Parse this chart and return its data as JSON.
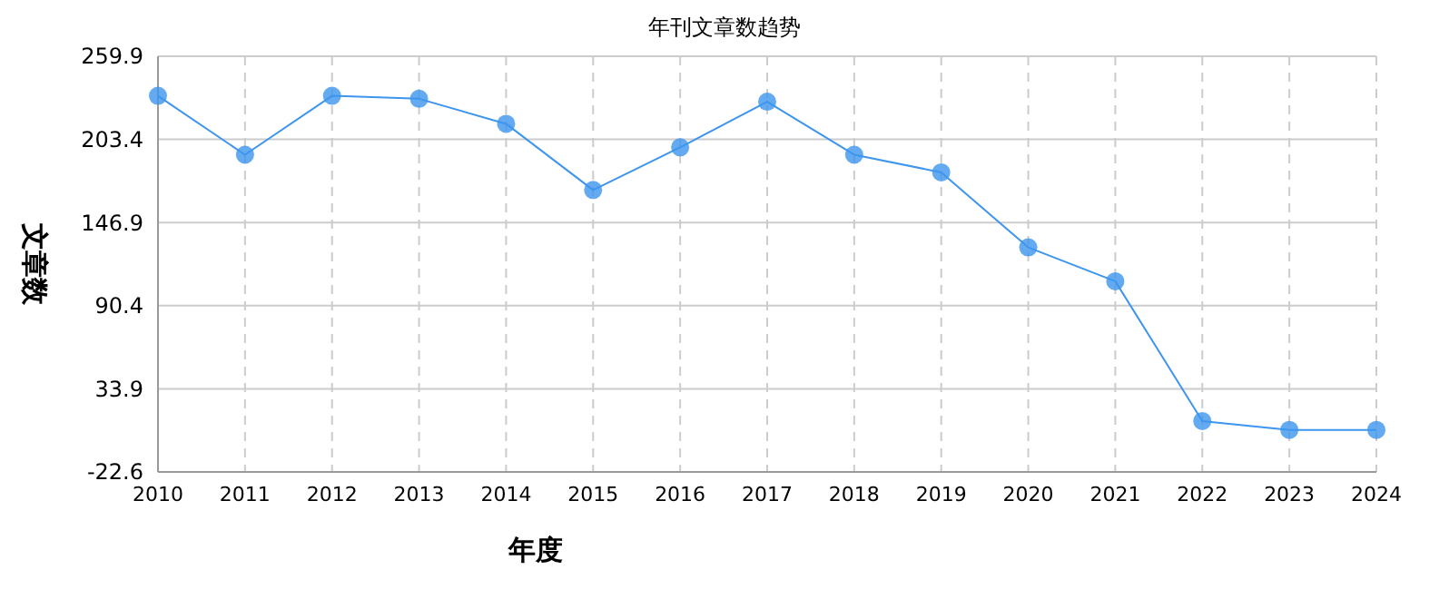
{
  "chart_data": {
    "type": "line",
    "title": "年刊文章数趋势",
    "xlabel": "年度",
    "ylabel": "文章数",
    "categories": [
      "2010",
      "2011",
      "2012",
      "2013",
      "2014",
      "2015",
      "2016",
      "2017",
      "2018",
      "2019",
      "2020",
      "2021",
      "2022",
      "2023",
      "2024"
    ],
    "series": [
      {
        "color": "#3d95ee",
        "values": [
          233,
          193,
          233,
          231,
          214,
          169,
          198,
          229,
          193,
          181,
          130,
          107,
          12,
          6,
          6
        ]
      }
    ],
    "ylim": [
      -22.6,
      259.9
    ],
    "yticks": [
      -22.6,
      33.9,
      90.4,
      146.9,
      203.4,
      259.9
    ],
    "grid": true,
    "marker": "circle",
    "line_style": "solid"
  }
}
